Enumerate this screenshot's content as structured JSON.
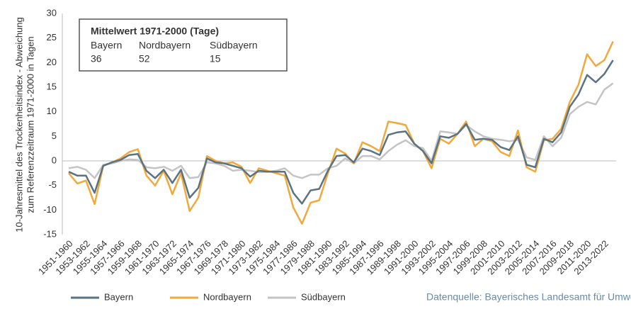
{
  "chart_data": {
    "type": "line",
    "ylabel": [
      "10-Jahresmittel des Trockenheitsindex - Abweichung",
      "zum Referenzzeitraum 1971-2000 in Tagen"
    ],
    "categories": [
      "1951-1960",
      null,
      "1953-1962",
      null,
      "1955-1964",
      null,
      "1957-1966",
      null,
      "1959-1968",
      null,
      "1961-1970",
      null,
      "1963-1972",
      null,
      "1965-1974",
      null,
      "1967-1976",
      null,
      "1969-1978",
      null,
      "1971-1980",
      null,
      "1973-1982",
      null,
      "1975-1984",
      null,
      "1977-1986",
      null,
      "1979-1988",
      null,
      "1981-1990",
      null,
      "1983-1992",
      null,
      "1985-1994",
      null,
      "1987-1996",
      null,
      "1989-1998",
      null,
      "1991-2000",
      null,
      "1993-2002",
      null,
      "1995-2004",
      null,
      "1997-2006",
      null,
      "1999-2008",
      null,
      "2001-2010",
      null,
      "2003-2012",
      null,
      "2005-2014",
      null,
      "2007-2016",
      null,
      "2009-2018",
      null,
      "2011-2020",
      null,
      "2013-2022",
      null
    ],
    "series": [
      {
        "name": "Bayern",
        "color": "#5a7282",
        "values": [
          -2.2,
          -3,
          -3,
          -6.5,
          -1,
          -0.3,
          0.2,
          1.2,
          1.4,
          -2,
          -3.5,
          -1.8,
          -4.5,
          -1.8,
          -7.5,
          -5.5,
          0.5,
          -0.3,
          -0.5,
          -1,
          -1.5,
          -3.2,
          -2,
          -2.2,
          -2.2,
          -2.2,
          -6.5,
          -8.7,
          -6,
          -5.7,
          -2,
          1,
          1.2,
          -0.3,
          2.5,
          2,
          1.2,
          5.3,
          5.8,
          6,
          3.5,
          2,
          -0.5,
          5,
          4.7,
          5.5,
          7.5,
          4.3,
          4.5,
          4.3,
          2.8,
          2.2,
          5,
          -0.8,
          -1.3,
          4.5,
          3.8,
          5.8,
          11,
          13.5,
          17.5,
          16,
          17.7,
          20.5
        ]
      },
      {
        "name": "Nordbayern",
        "color": "#f0a93a",
        "values": [
          -2.5,
          -4.6,
          -4,
          -8.8,
          -1,
          -0.3,
          0.5,
          1.8,
          2.4,
          -3,
          -5,
          -2,
          -6.8,
          -2.5,
          -10.2,
          -7.5,
          1,
          0,
          -0.5,
          -0.3,
          -1.2,
          -4.5,
          -1.5,
          -2,
          -2.5,
          -3,
          -9.5,
          -12.8,
          -8.5,
          -8,
          -2.5,
          2.5,
          1.5,
          -0.5,
          3.8,
          3,
          2,
          8,
          7.7,
          7.3,
          3.5,
          2,
          -1.5,
          4.5,
          3.5,
          5.5,
          8,
          3,
          4.5,
          4,
          1.8,
          1,
          6.2,
          -1.3,
          -2.2,
          4.2,
          4.5,
          6.5,
          12,
          15.5,
          21.7,
          19.3,
          20.5,
          24.3
        ]
      },
      {
        "name": "Südbayern",
        "color": "#c4c4c4",
        "values": [
          -1.5,
          -1.2,
          -1.8,
          -3.5,
          -0.8,
          -0.5,
          0,
          0.3,
          0.2,
          -1.3,
          -1.5,
          -1.2,
          -2,
          -1,
          -3.5,
          -3.3,
          -0.3,
          -0.5,
          -1,
          -2,
          -1.8,
          -2,
          -2.3,
          -2.2,
          -2,
          -1.5,
          -3,
          -3.5,
          -2.8,
          -2.8,
          -1.5,
          -1,
          0.5,
          -0.5,
          1,
          1,
          0.3,
          2,
          3.3,
          4.2,
          3,
          2.6,
          0,
          6,
          5.8,
          5.5,
          7.3,
          6,
          5,
          4.5,
          4.3,
          4,
          4.3,
          0.7,
          0.2,
          5,
          3,
          4.7,
          9.5,
          11,
          12,
          11.5,
          14.5,
          15.8
        ]
      }
    ],
    "ylim": [
      -15,
      30
    ],
    "yticks": [
      -15,
      -10,
      -5,
      0,
      5,
      10,
      15,
      20,
      25,
      30
    ],
    "annotation": {
      "title": "Mittelwert 1971-2000 (Tage)",
      "names": [
        "Bayern",
        "Nordbayern",
        "Südbayern"
      ],
      "values": [
        36,
        52,
        15
      ]
    },
    "source": "Datenquelle: Bayerisches Landesamt für Umwelt",
    "legend": "bottom"
  }
}
